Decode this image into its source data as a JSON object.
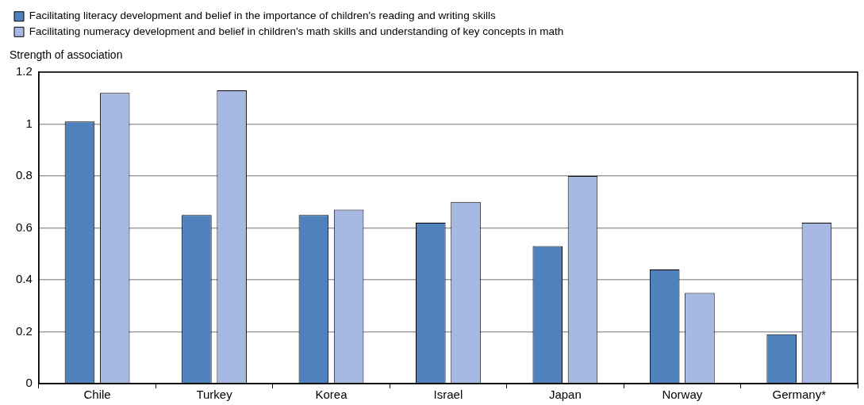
{
  "chart_data": {
    "type": "bar",
    "ylabel": "Strength of association",
    "categories": [
      "Chile",
      "Turkey",
      "Korea",
      "Israel",
      "Japan",
      "Norway",
      "Germany*"
    ],
    "series": [
      {
        "name": "Facilitating literacy development and belief in the importance of children's reading and writing skills",
        "color": "#4f81bd",
        "values": [
          1.01,
          0.65,
          0.65,
          0.62,
          0.53,
          0.44,
          0.19
        ]
      },
      {
        "name": "Facilitating numeracy development and belief in children's math skills and understanding of key concepts in math",
        "color": "#a7b9e3",
        "values": [
          1.12,
          1.13,
          0.67,
          0.7,
          0.8,
          0.35,
          0.62
        ]
      }
    ],
    "ylim": [
      0,
      1.2
    ],
    "yticks": [
      0,
      0.2,
      0.4,
      0.6,
      0.8,
      1,
      1.2
    ],
    "grid": "y",
    "legend": "top left"
  }
}
